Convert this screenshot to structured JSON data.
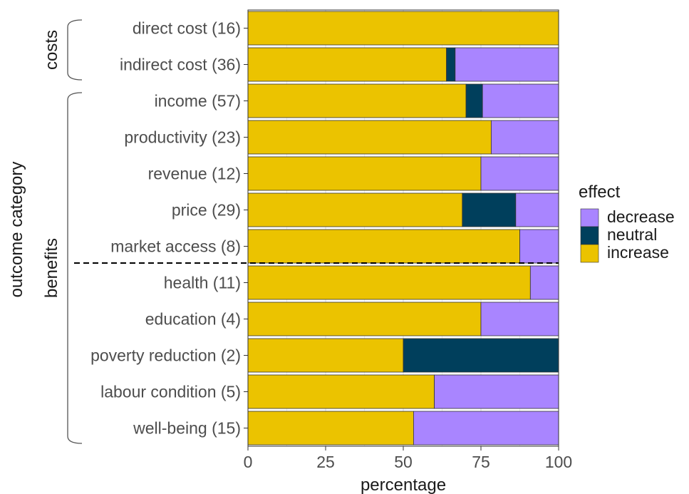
{
  "chart_data": {
    "type": "bar",
    "orientation": "horizontal",
    "stacked": true,
    "xlabel": "percentage",
    "ylabel": "outcome category",
    "xlim": [
      0,
      100
    ],
    "x_ticks": [
      "0",
      "25",
      "50",
      "75",
      "100"
    ],
    "grid": true,
    "legend_position": "right",
    "legend_title": "effect",
    "legend": [
      {
        "name": "decrease",
        "color": "#a985ff"
      },
      {
        "name": "neutral",
        "color": "#003f5c"
      },
      {
        "name": "increase",
        "color": "#ebc300"
      }
    ],
    "groups": [
      {
        "label": "costs",
        "start": 0,
        "end": 1
      },
      {
        "label": "benefits",
        "start": 2,
        "end": 11
      }
    ],
    "divider_after_index": 6,
    "categories": [
      "direct cost (16)",
      "indirect cost (36)",
      "income (57)",
      "productivity (23)",
      "revenue (12)",
      "price (29)",
      "market access (8)",
      "health (11)",
      "education (4)",
      "poverty reduction (2)",
      "labour condition (5)",
      "well-being (15)"
    ],
    "series": [
      {
        "name": "increase",
        "values": [
          100,
          63.9,
          70.2,
          78.3,
          75,
          69,
          87.5,
          90.9,
          75,
          50,
          60,
          53.3
        ]
      },
      {
        "name": "neutral",
        "values": [
          0,
          2.8,
          5.3,
          0,
          0,
          17.2,
          0,
          0,
          0,
          50,
          0,
          0
        ]
      },
      {
        "name": "decrease",
        "values": [
          0,
          33.3,
          24.5,
          21.7,
          25,
          13.8,
          12.5,
          9.1,
          25,
          0,
          40,
          46.7
        ]
      }
    ]
  }
}
